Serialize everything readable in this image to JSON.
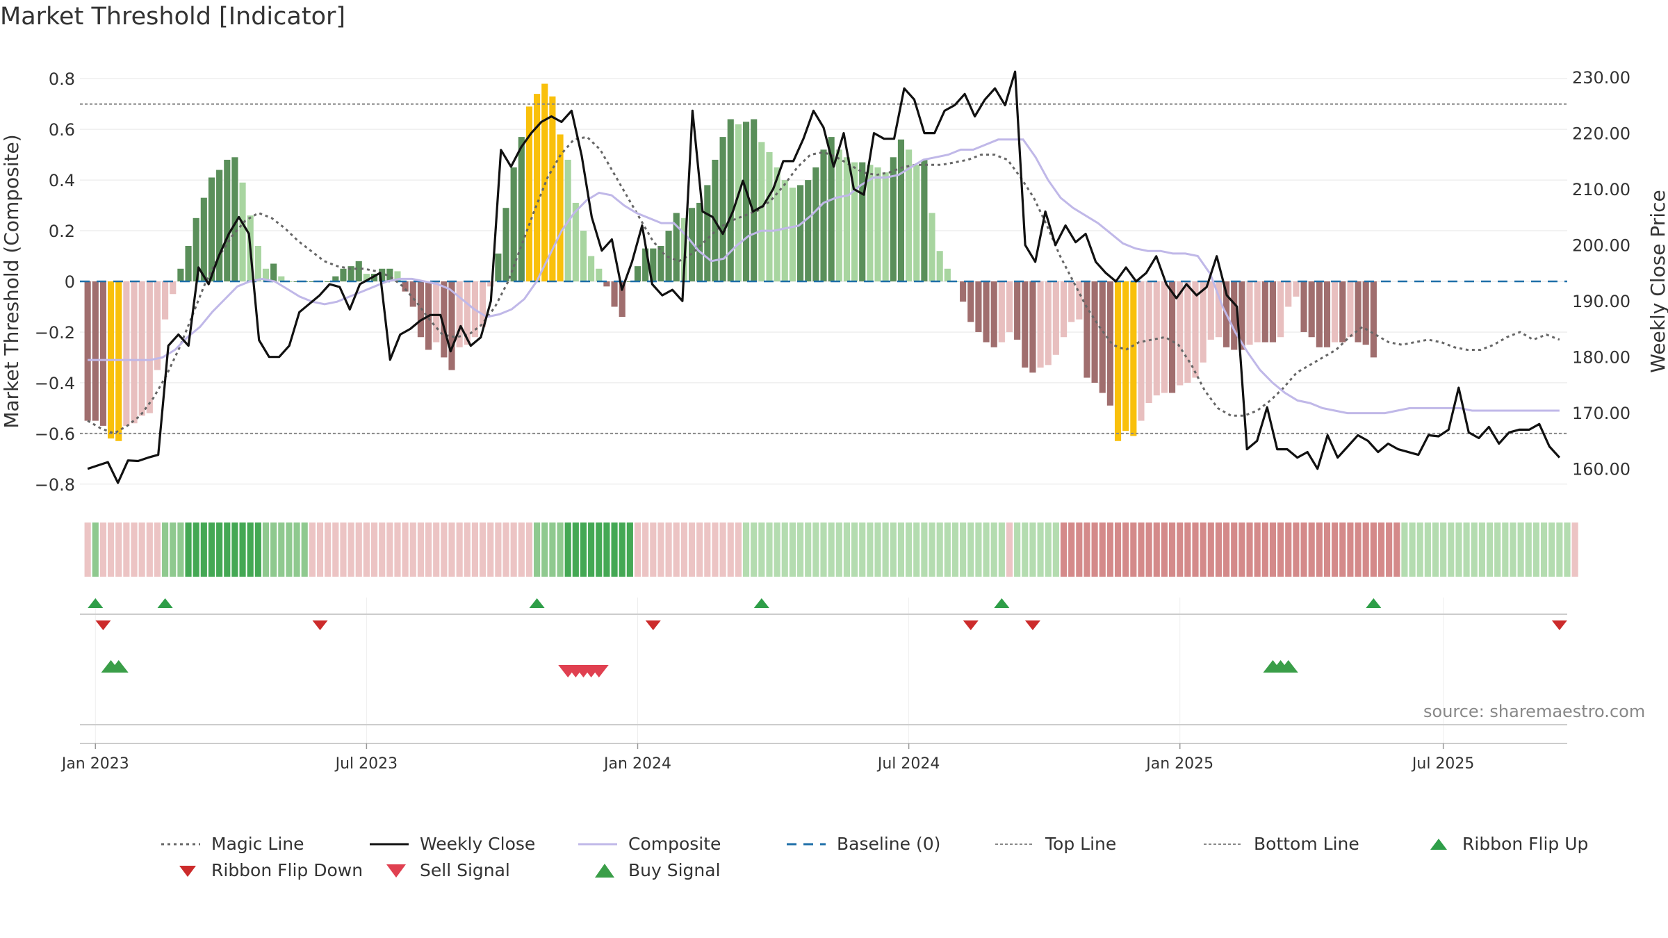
{
  "page": {
    "title": "Market Threshold [Indicator]",
    "source": "source: sharemaestro.com"
  },
  "colors": {
    "dark_green": "#5a8f5a",
    "light_green": "#a8d5a0",
    "dark_red": "#a06e6e",
    "light_red": "#e8bfbf",
    "yellow": "#f9c00b",
    "close": "#111111",
    "composite": "#c0b8e8",
    "magic": "#666666",
    "baseline": "#1f6fa8",
    "flip_up": "#2e9e48",
    "flip_down": "#cc2b2b",
    "sell": "#e04050",
    "buy": "#3a9e48"
  },
  "chart_data": {
    "type": "bar",
    "title": "Market Threshold [Indicator]",
    "ylabel": "Market Threshold (Composite)",
    "y2label": "Weekly Close Price",
    "ylim": [
      -0.85,
      0.85
    ],
    "y2lim": [
      155,
      232
    ],
    "yticks": [
      0.8,
      0.6,
      0.4,
      0.2,
      0,
      -0.2,
      -0.4,
      -0.6,
      -0.8
    ],
    "ytick_labels": [
      "0.8",
      "0.6",
      "0.4",
      "0.2",
      "0",
      "−0.2",
      "−0.4",
      "−0.6",
      "−0.8"
    ],
    "y2ticks": [
      "230.00",
      "220.00",
      "210.00",
      "200.00",
      "190.00",
      "180.00",
      "170.00",
      "160.00"
    ],
    "y2tick_values": [
      230,
      220,
      210,
      200,
      190,
      180,
      170,
      160
    ],
    "xlim": [
      -1,
      191
    ],
    "x_ticks": [
      {
        "label": "Jan 2023",
        "week": 1
      },
      {
        "label": "Jul 2023",
        "week": 36
      },
      {
        "label": "Jan 2024",
        "week": 71
      },
      {
        "label": "Jul 2024",
        "week": 106
      },
      {
        "label": "Jan 2025",
        "week": 141
      },
      {
        "label": "Jul 2025",
        "week": 175
      }
    ],
    "top_line": 0.7,
    "bottom_line": -0.6,
    "composite_bars": [
      -0.55,
      -0.55,
      -0.57,
      -0.62,
      -0.63,
      -0.57,
      -0.56,
      -0.53,
      -0.52,
      -0.35,
      -0.15,
      -0.05,
      0.05,
      0.14,
      0.25,
      0.33,
      0.41,
      0.44,
      0.48,
      0.49,
      0.39,
      0.26,
      0.14,
      0.05,
      0.07,
      0.02,
      0.0,
      0.0,
      0.0,
      0.0,
      0.0,
      0.0,
      0.02,
      0.05,
      0.06,
      0.08,
      0.03,
      0.03,
      0.05,
      0.05,
      0.04,
      -0.04,
      -0.1,
      -0.22,
      -0.27,
      -0.24,
      -0.3,
      -0.35,
      -0.26,
      -0.25,
      -0.22,
      -0.18,
      -0.02,
      0.11,
      0.29,
      0.45,
      0.57,
      0.69,
      0.74,
      0.78,
      0.73,
      0.58,
      0.48,
      0.31,
      0.2,
      0.1,
      0.05,
      -0.02,
      -0.1,
      -0.14,
      0.0,
      0.06,
      0.13,
      0.13,
      0.14,
      0.2,
      0.27,
      0.25,
      0.29,
      0.31,
      0.38,
      0.48,
      0.57,
      0.64,
      0.62,
      0.63,
      0.64,
      0.55,
      0.51,
      0.45,
      0.4,
      0.37,
      0.38,
      0.4,
      0.45,
      0.52,
      0.57,
      0.52,
      0.49,
      0.47,
      0.47,
      0.46,
      0.45,
      0.43,
      0.49,
      0.56,
      0.52,
      0.46,
      0.48,
      0.27,
      0.12,
      0.05,
      0.0,
      -0.08,
      -0.16,
      -0.2,
      -0.24,
      -0.26,
      -0.24,
      -0.2,
      -0.23,
      -0.34,
      -0.36,
      -0.34,
      -0.33,
      -0.29,
      -0.22,
      -0.16,
      -0.15,
      -0.38,
      -0.4,
      -0.44,
      -0.49,
      -0.63,
      -0.59,
      -0.61,
      -0.55,
      -0.48,
      -0.45,
      -0.44,
      -0.44,
      -0.41,
      -0.4,
      -0.38,
      -0.32,
      -0.23,
      -0.22,
      -0.26,
      -0.27,
      -0.27,
      -0.25,
      -0.24,
      -0.24,
      -0.24,
      -0.22,
      -0.1,
      -0.06,
      -0.2,
      -0.22,
      -0.26,
      -0.26,
      -0.24,
      -0.24,
      -0.22,
      -0.24,
      -0.25,
      -0.3
    ],
    "weekly_close": [
      160.0,
      160.6,
      161.2,
      157.5,
      161.5,
      161.4,
      162.0,
      162.5,
      182.0,
      184.0,
      182.0,
      196.0,
      193.0,
      198.0,
      202.0,
      205.0,
      202.0,
      183.0,
      180.0,
      180.0,
      182.0,
      188.0,
      189.5,
      191.0,
      193.0,
      192.5,
      188.5,
      193.0,
      194.0,
      195.0,
      179.5,
      184.0,
      185.0,
      186.5,
      187.5,
      187.5,
      181.0,
      185.5,
      182.0,
      183.5,
      190.0,
      217.0,
      214.0,
      217.5,
      220.0,
      222.0,
      223.0,
      222.0,
      224.0,
      216.0,
      205.0,
      199.0,
      201.0,
      192.0,
      197.0,
      203.5,
      193.0,
      191.0,
      192.0,
      190.0,
      224.0,
      206.0,
      205.0,
      202.0,
      206.0,
      211.5,
      206.0,
      207.0,
      210.0,
      215.0,
      215.0,
      219.0,
      224.0,
      221.0,
      214.0,
      220.0,
      210.0,
      209.0,
      220.0,
      219.0,
      219.0,
      228.0,
      226.0,
      220.0,
      220.0,
      224.0,
      225.0,
      227.0,
      223.0,
      226.0,
      228.0,
      225.0,
      231.0,
      200.0,
      197.0,
      206.0,
      200.0,
      203.5,
      200.5,
      202.0,
      197.0,
      195.0,
      193.5,
      196.0,
      193.5,
      195.0,
      198.0,
      193.0,
      190.5,
      193.0,
      191.0,
      192.5,
      198.0,
      191.0,
      189.0,
      163.5,
      165.0,
      171.0,
      163.5,
      163.5,
      162.0,
      163.0,
      160.0,
      166.0,
      162.0,
      164.0,
      166.0,
      165.0,
      163.0,
      164.5,
      163.5,
      163.0,
      162.5,
      166.0,
      165.8,
      167.0,
      174.5,
      166.5,
      165.5,
      167.5,
      164.5,
      166.5,
      167.0,
      167.0,
      168.0,
      164.0,
      162.0
    ],
    "composite_line": [
      -0.31,
      -0.31,
      -0.31,
      -0.31,
      -0.31,
      -0.31,
      -0.3,
      -0.27,
      -0.22,
      -0.18,
      -0.12,
      -0.07,
      -0.02,
      0.0,
      0.01,
      0.0,
      -0.03,
      -0.06,
      -0.08,
      -0.09,
      -0.08,
      -0.06,
      -0.04,
      -0.02,
      0.0,
      0.01,
      0.01,
      0.0,
      -0.01,
      -0.03,
      -0.07,
      -0.11,
      -0.14,
      -0.13,
      -0.11,
      -0.07,
      0.0,
      0.1,
      0.2,
      0.27,
      0.32,
      0.35,
      0.34,
      0.3,
      0.27,
      0.25,
      0.23,
      0.23,
      0.18,
      0.12,
      0.08,
      0.09,
      0.14,
      0.18,
      0.2,
      0.2,
      0.21,
      0.22,
      0.26,
      0.31,
      0.33,
      0.34,
      0.38,
      0.41,
      0.41,
      0.42,
      0.45,
      0.48,
      0.49,
      0.5,
      0.52,
      0.52,
      0.54,
      0.56,
      0.56,
      0.56,
      0.49,
      0.4,
      0.33,
      0.29,
      0.26,
      0.23,
      0.19,
      0.15,
      0.13,
      0.12,
      0.12,
      0.11,
      0.11,
      0.1,
      0.03,
      -0.1,
      -0.2,
      -0.28,
      -0.35,
      -0.4,
      -0.44,
      -0.47,
      -0.48,
      -0.5,
      -0.51,
      -0.52,
      -0.52,
      -0.52,
      -0.52,
      -0.51,
      -0.5,
      -0.5,
      -0.5,
      -0.5,
      -0.5,
      -0.51,
      -0.51,
      -0.51,
      -0.51,
      -0.51,
      -0.51,
      -0.51,
      -0.51
    ],
    "magic_line": [
      -0.55,
      -0.58,
      -0.6,
      -0.57,
      -0.53,
      -0.46,
      -0.37,
      -0.26,
      -0.13,
      0.0,
      0.1,
      0.18,
      0.24,
      0.27,
      0.25,
      0.21,
      0.16,
      0.12,
      0.08,
      0.06,
      0.05,
      0.05,
      0.04,
      0.02,
      -0.02,
      -0.08,
      -0.15,
      -0.21,
      -0.22,
      -0.21,
      -0.17,
      -0.1,
      0.0,
      0.14,
      0.28,
      0.41,
      0.5,
      0.56,
      0.57,
      0.52,
      0.43,
      0.34,
      0.25,
      0.16,
      0.1,
      0.08,
      0.11,
      0.16,
      0.21,
      0.24,
      0.26,
      0.28,
      0.32,
      0.38,
      0.45,
      0.5,
      0.51,
      0.49,
      0.46,
      0.43,
      0.42,
      0.43,
      0.45,
      0.46,
      0.46,
      0.46,
      0.47,
      0.48,
      0.5,
      0.5,
      0.48,
      0.41,
      0.33,
      0.22,
      0.1,
      0.0,
      -0.1,
      -0.18,
      -0.25,
      -0.27,
      -0.24,
      -0.23,
      -0.22,
      -0.25,
      -0.33,
      -0.43,
      -0.5,
      -0.53,
      -0.53,
      -0.51,
      -0.47,
      -0.42,
      -0.36,
      -0.33,
      -0.3,
      -0.27,
      -0.22,
      -0.18,
      -0.21,
      -0.24,
      -0.25,
      -0.24,
      -0.23,
      -0.24,
      -0.26,
      -0.27,
      -0.27,
      -0.25,
      -0.22,
      -0.2,
      -0.23,
      -0.21,
      -0.23
    ],
    "ribbon": [
      "pink",
      "green",
      "pink",
      "pink",
      "pink",
      "pink",
      "pink",
      "pink",
      "pink",
      "pink",
      "green",
      "green",
      "green",
      "dgreen",
      "dgreen",
      "dgreen",
      "dgreen",
      "dgreen",
      "dgreen",
      "dgreen",
      "dgreen",
      "dgreen",
      "dgreen",
      "green",
      "green",
      "green",
      "green",
      "green",
      "green",
      "pink",
      "pink",
      "pink",
      "pink",
      "pink",
      "pink",
      "pink",
      "pink",
      "pink",
      "pink",
      "pink",
      "pink",
      "pink",
      "pink",
      "pink",
      "pink",
      "pink",
      "pink",
      "pink",
      "pink",
      "pink",
      "pink",
      "pink",
      "pink",
      "pink",
      "pink",
      "pink",
      "pink",
      "pink",
      "green",
      "green",
      "green",
      "green",
      "dgreen",
      "dgreen",
      "dgreen",
      "dgreen",
      "dgreen",
      "dgreen",
      "dgreen",
      "dgreen",
      "dgreen",
      "pink",
      "pink",
      "pink",
      "pink",
      "pink",
      "pink",
      "pink",
      "pink",
      "pink",
      "pink",
      "pink",
      "pink",
      "pink",
      "pink",
      "lgreen",
      "lgreen",
      "lgreen",
      "lgreen",
      "lgreen",
      "lgreen",
      "lgreen",
      "lgreen",
      "lgreen",
      "lgreen",
      "lgreen",
      "lgreen",
      "lgreen",
      "lgreen",
      "lgreen",
      "lgreen",
      "lgreen",
      "lgreen",
      "lgreen",
      "lgreen",
      "lgreen",
      "lgreen",
      "lgreen",
      "lgreen",
      "lgreen",
      "lgreen",
      "lgreen",
      "lgreen",
      "lgreen",
      "lgreen",
      "lgreen",
      "lgreen",
      "lgreen",
      "lgreen",
      "pink",
      "lgreen",
      "lgreen",
      "lgreen",
      "lgreen",
      "lgreen",
      "lgreen",
      "red",
      "red",
      "red",
      "red",
      "red",
      "red",
      "red",
      "red",
      "red",
      "red",
      "red",
      "red",
      "red",
      "red",
      "red",
      "red",
      "red",
      "red",
      "red",
      "red",
      "red",
      "red",
      "red",
      "red",
      "red",
      "red",
      "red",
      "red",
      "red",
      "red",
      "red",
      "red",
      "red",
      "red",
      "red",
      "red",
      "red",
      "red",
      "red",
      "red",
      "red",
      "red",
      "red",
      "red",
      "lgreen",
      "lgreen",
      "lgreen",
      "lgreen",
      "lgreen",
      "lgreen",
      "lgreen",
      "lgreen",
      "lgreen",
      "lgreen",
      "lgreen",
      "lgreen",
      "lgreen",
      "lgreen",
      "lgreen",
      "lgreen",
      "lgreen",
      "lgreen",
      "lgreen",
      "lgreen",
      "lgreen",
      "lgreen",
      "pink"
    ],
    "ribbon_flip_up": [
      1,
      10,
      58,
      87,
      118,
      166
    ],
    "ribbon_flip_down": [
      2,
      30,
      73,
      114,
      122,
      190
    ],
    "buy_signals": [
      3,
      4,
      153,
      154,
      155
    ],
    "sell_signals": [
      62,
      63,
      64,
      65,
      66
    ]
  },
  "legend": [
    {
      "label": "Magic Line",
      "style": "dotted",
      "color": "#666666"
    },
    {
      "label": "Weekly Close",
      "style": "solid",
      "color": "#111111"
    },
    {
      "label": "Composite",
      "style": "solid",
      "color": "#c0b8e8"
    },
    {
      "label": "Baseline (0)",
      "style": "dashed",
      "color": "#1f6fa8"
    },
    {
      "label": "Top Line",
      "style": "dotted",
      "color": "#888888"
    },
    {
      "label": "Bottom Line",
      "style": "dotted",
      "color": "#888888"
    },
    {
      "label": "Ribbon Flip Up",
      "style": "tri-up",
      "color": "#2e9e48"
    },
    {
      "label": "Ribbon Flip Down",
      "style": "tri-down",
      "color": "#cc2b2b"
    },
    {
      "label": "Sell Signal",
      "style": "tri-down",
      "color": "#e04050"
    },
    {
      "label": "Buy Signal",
      "style": "tri-up",
      "color": "#3a9e48"
    }
  ]
}
